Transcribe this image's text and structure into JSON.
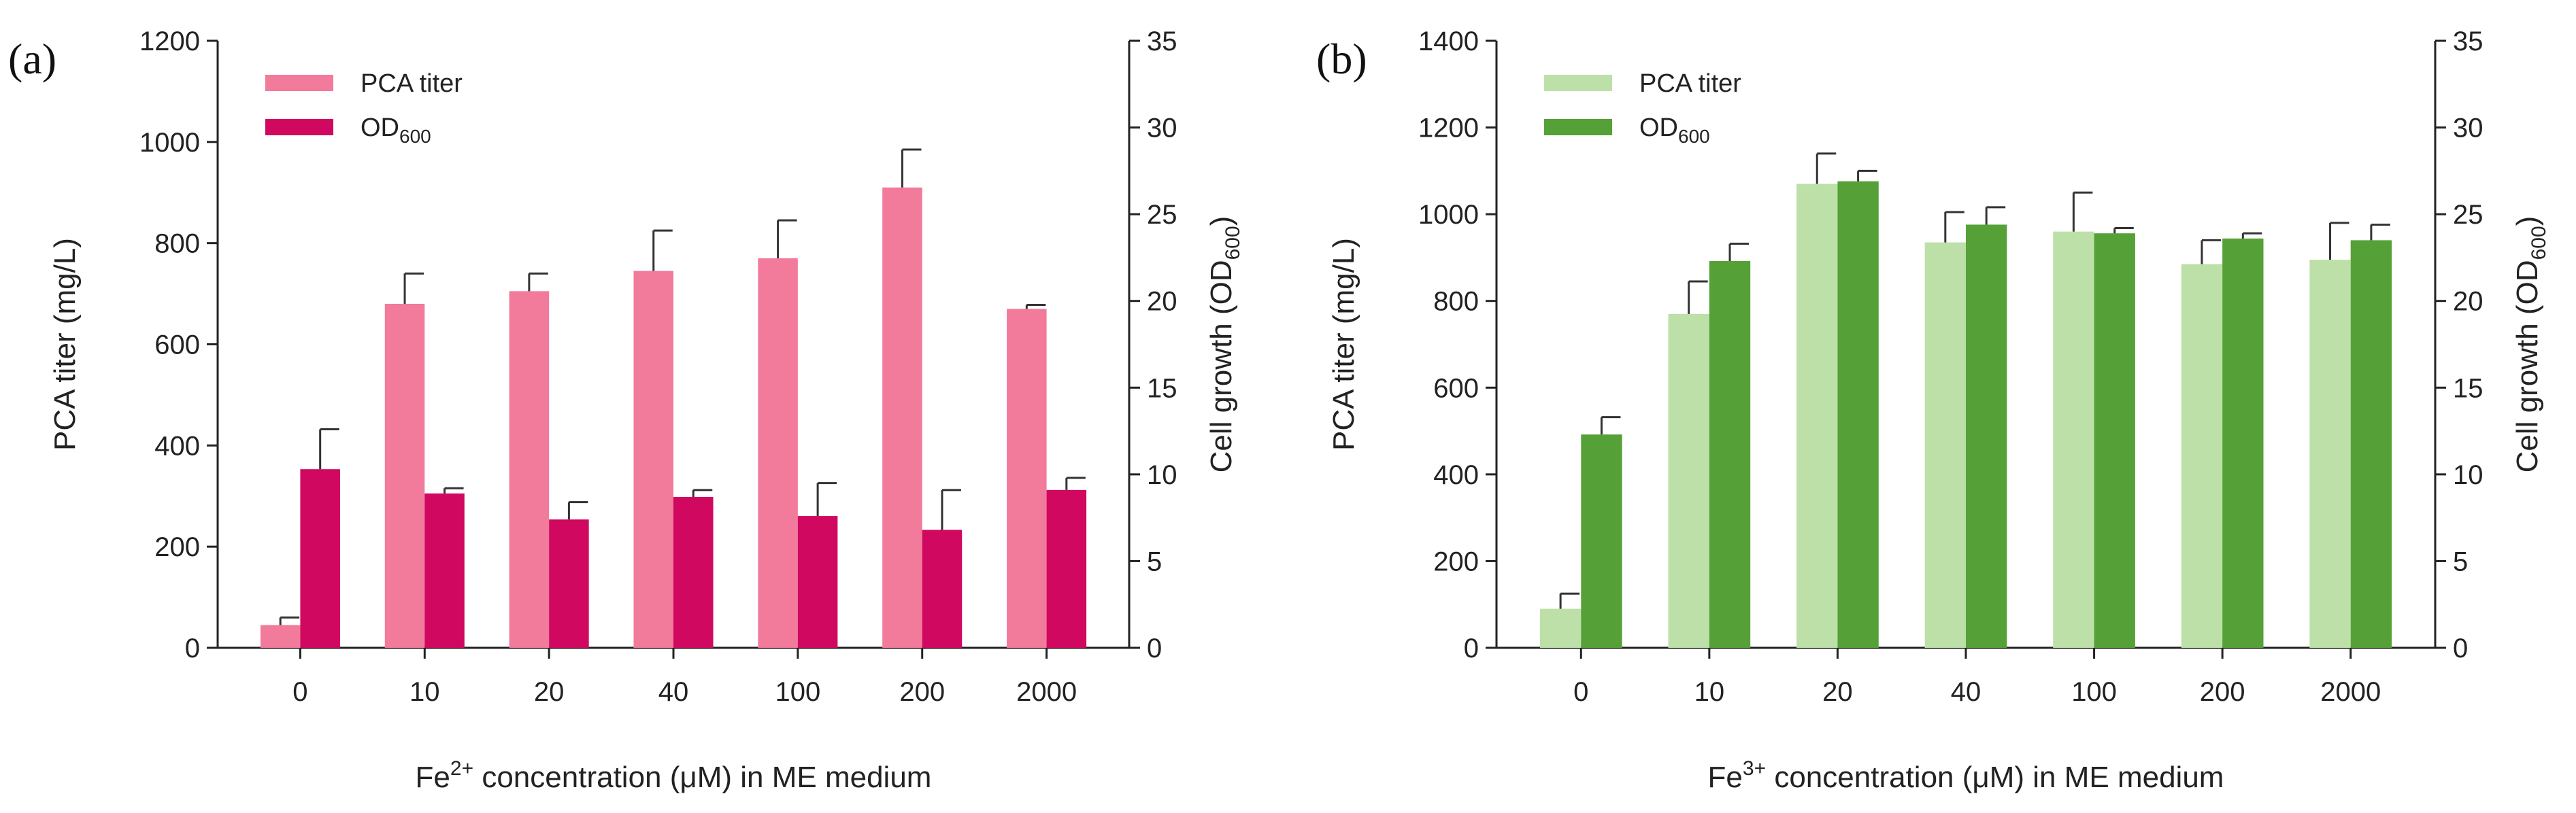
{
  "chart_data": [
    {
      "type": "bar",
      "panel_label": "(a)",
      "categories": [
        "0",
        "10",
        "20",
        "40",
        "100",
        "200",
        "2000"
      ],
      "xlabel": {
        "prefix": "Fe",
        "sup": "2+",
        "suffix": " concentration (μM) in ME medium"
      },
      "ylabel_left": "PCA titer (mg/L)",
      "ylabel_right": {
        "prefix": "Cell growth (OD",
        "sub": "600",
        "suffix": ")"
      },
      "ylim_left": [
        0,
        1200
      ],
      "ylim_right": [
        0,
        35
      ],
      "yticks_left": [
        "0",
        "200",
        "400",
        "600",
        "800",
        "1000",
        "1200"
      ],
      "yticks_right": [
        "0",
        "5",
        "10",
        "15",
        "20",
        "25",
        "30",
        "35"
      ],
      "legend": {
        "placement": "top-left",
        "entries": [
          {
            "text": "PCA titer"
          },
          {
            "prefix": "OD",
            "sub": "600"
          }
        ]
      },
      "series": [
        {
          "name": "PCA titer",
          "axis": "left",
          "color": "#F27A9B",
          "values": [
            45,
            680,
            705,
            745,
            770,
            910,
            670
          ],
          "errors": [
            15,
            60,
            35,
            80,
            75,
            75,
            8
          ]
        },
        {
          "name": "OD600",
          "axis": "right",
          "color": "#D0085F",
          "values": [
            10.3,
            8.9,
            7.4,
            8.7,
            7.6,
            6.8,
            9.1
          ],
          "errors": [
            2.3,
            0.3,
            1.0,
            0.4,
            1.9,
            2.3,
            0.7
          ]
        }
      ]
    },
    {
      "type": "bar",
      "panel_label": "(b)",
      "categories": [
        "0",
        "10",
        "20",
        "40",
        "100",
        "200",
        "2000"
      ],
      "xlabel": {
        "prefix": "Fe",
        "sup": "3+",
        "suffix": " concentration (μM) in ME medium"
      },
      "ylabel_left": "PCA titer (mg/L)",
      "ylabel_right": {
        "prefix": "Cell growth (OD",
        "sub": "600",
        "suffix": ")"
      },
      "ylim_left": [
        0,
        1400
      ],
      "ylim_right": [
        0,
        35
      ],
      "yticks_left": [
        "0",
        "200",
        "400",
        "600",
        "800",
        "1000",
        "1200",
        "1400"
      ],
      "yticks_right": [
        "0",
        "5",
        "10",
        "15",
        "20",
        "25",
        "30",
        "35"
      ],
      "legend": {
        "placement": "top-left",
        "entries": [
          {
            "text": "PCA titer"
          },
          {
            "prefix": "OD",
            "sub": "600"
          }
        ]
      },
      "series": [
        {
          "name": "PCA titer",
          "axis": "left",
          "color": "#BDE0A8",
          "values": [
            90,
            770,
            1070,
            935,
            960,
            885,
            895
          ],
          "errors": [
            35,
            75,
            70,
            70,
            90,
            55,
            85
          ]
        },
        {
          "name": "OD600",
          "axis": "right",
          "color": "#55A137",
          "values": [
            12.3,
            22.3,
            26.9,
            24.4,
            23.9,
            23.6,
            23.5
          ],
          "errors": [
            1.0,
            1.0,
            0.6,
            1.0,
            0.3,
            0.3,
            0.9
          ]
        }
      ]
    }
  ]
}
